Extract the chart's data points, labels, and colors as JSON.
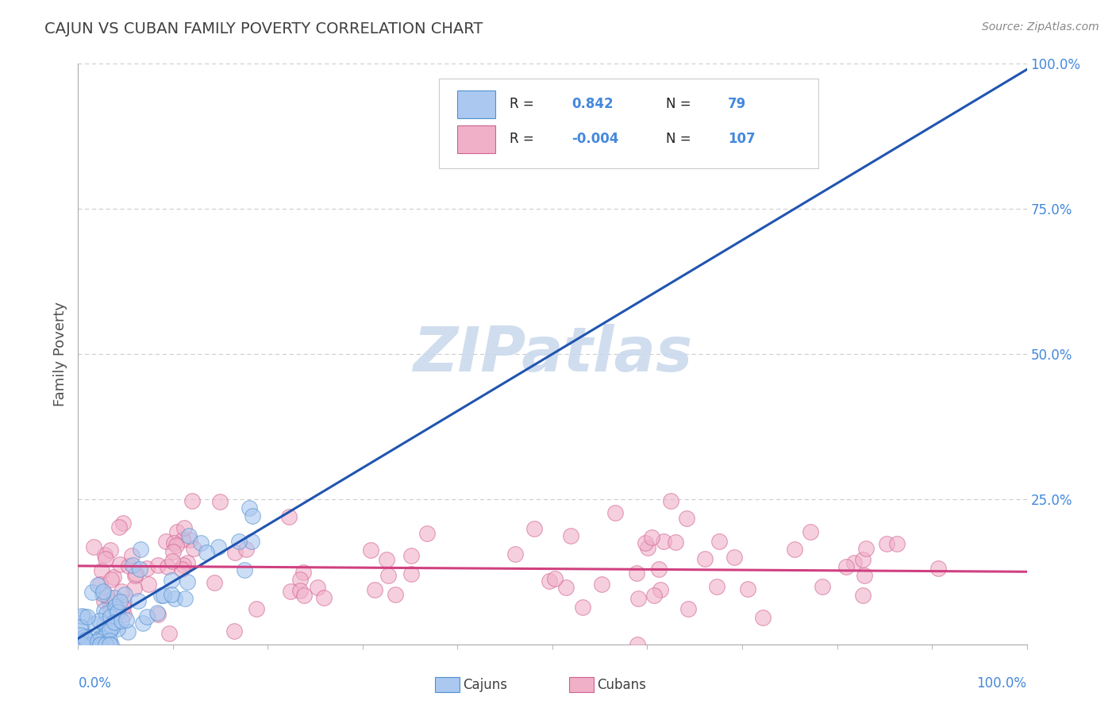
{
  "title": "CAJUN VS CUBAN FAMILY POVERTY CORRELATION CHART",
  "source_text": "Source: ZipAtlas.com",
  "ylabel": "Family Poverty",
  "cajun_R": 0.842,
  "cajun_N": 79,
  "cuban_R": -0.004,
  "cuban_N": 107,
  "cajun_color": "#aac8f0",
  "cajun_edge_color": "#5090d0",
  "cajun_line_color": "#2055b0",
  "cuban_color": "#f0b0c8",
  "cuban_edge_color": "#d06090",
  "cuban_line_color": "#d04080",
  "watermark_color": "#c8d8ec",
  "background_color": "#ffffff",
  "grid_color": "#cccccc",
  "title_color": "#404040",
  "axis_label_color": "#4488dd",
  "legend_text_color": "#222222",
  "legend_val_color": "#4488dd",
  "source_color": "#888888",
  "point_size": 200,
  "point_alpha": 0.6,
  "line_width": 2.2,
  "cajun_seed": 12,
  "cuban_seed": 42
}
